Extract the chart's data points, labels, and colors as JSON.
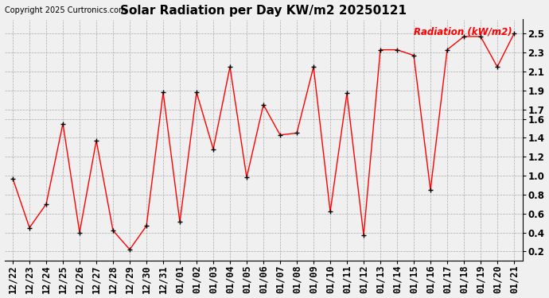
{
  "title": "Solar Radiation per Day KW/m2 20250121",
  "copyright": "Copyright 2025 Curtronics.com",
  "legend_label": "Radiation (kW/m2)",
  "dates": [
    "12/22",
    "12/23",
    "12/24",
    "12/25",
    "12/26",
    "12/27",
    "12/28",
    "12/29",
    "12/30",
    "12/31",
    "01/01",
    "01/02",
    "01/03",
    "01/04",
    "01/05",
    "01/06",
    "01/07",
    "01/08",
    "01/09",
    "01/10",
    "01/11",
    "01/12",
    "01/13",
    "01/14",
    "01/15",
    "01/16",
    "01/17",
    "01/18",
    "01/19",
    "01/20",
    "01/21"
  ],
  "values": [
    0.97,
    0.45,
    0.7,
    1.55,
    0.4,
    1.37,
    0.42,
    0.22,
    0.47,
    1.88,
    0.51,
    1.88,
    1.28,
    2.15,
    0.98,
    1.75,
    1.43,
    1.45,
    2.15,
    0.62,
    1.87,
    0.37,
    2.33,
    2.33,
    2.27,
    0.85,
    2.33,
    2.47,
    2.47,
    2.15,
    2.5
  ],
  "line_color": "red",
  "marker_color": "black",
  "ylim": [
    0.1,
    2.65
  ],
  "yticks": [
    0.2,
    0.4,
    0.6,
    0.8,
    1.0,
    1.2,
    1.4,
    1.6,
    1.7,
    1.9,
    2.1,
    2.3,
    2.5
  ],
  "ytick_labels": [
    "0.2",
    "0.4",
    "0.6",
    "0.8",
    "1.0",
    "1.2",
    "1.4",
    "1.6",
    "1.7",
    "1.9",
    "2.1",
    "2.3",
    "2.5"
  ],
  "background_color": "#f0f0f0",
  "grid_color": "#aaaaaa",
  "title_fontsize": 11,
  "copyright_fontsize": 7,
  "legend_fontsize": 8.5,
  "tick_fontsize": 8.5,
  "tick_fontweight": "bold"
}
